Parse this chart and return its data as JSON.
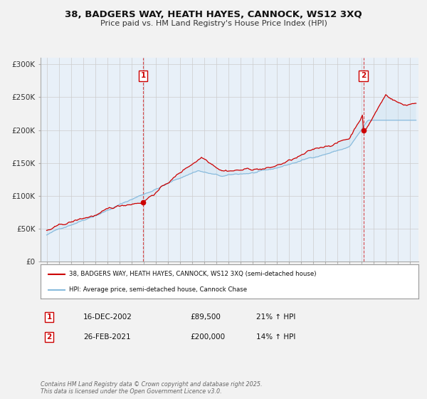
{
  "title": "38, BADGERS WAY, HEATH HAYES, CANNOCK, WS12 3XQ",
  "subtitle": "Price paid vs. HM Land Registry's House Price Index (HPI)",
  "bg_color": "#f2f2f2",
  "plot_bg_color": "#e8f0f8",
  "red_color": "#cc0000",
  "blue_color": "#88bbdd",
  "fill_color": "#c8dff0",
  "marker1_date": 2002.96,
  "marker2_date": 2021.15,
  "marker1_price": 89500,
  "marker2_price": 200000,
  "legend1": "38, BADGERS WAY, HEATH HAYES, CANNOCK, WS12 3XQ (semi-detached house)",
  "legend2": "HPI: Average price, semi-detached house, Cannock Chase",
  "note1_label": "1",
  "note1_date": "16-DEC-2002",
  "note1_price": "£89,500",
  "note1_hpi": "21% ↑ HPI",
  "note2_label": "2",
  "note2_date": "26-FEB-2021",
  "note2_price": "£200,000",
  "note2_hpi": "14% ↑ HPI",
  "footer": "Contains HM Land Registry data © Crown copyright and database right 2025.\nThis data is licensed under the Open Government Licence v3.0.",
  "ylim": [
    0,
    310000
  ],
  "xlim_start": 1994.5,
  "xlim_end": 2025.7,
  "yticks": [
    0,
    50000,
    100000,
    150000,
    200000,
    250000,
    300000
  ],
  "yticklabels": [
    "£0",
    "£50K",
    "£100K",
    "£150K",
    "£200K",
    "£250K",
    "£300K"
  ]
}
